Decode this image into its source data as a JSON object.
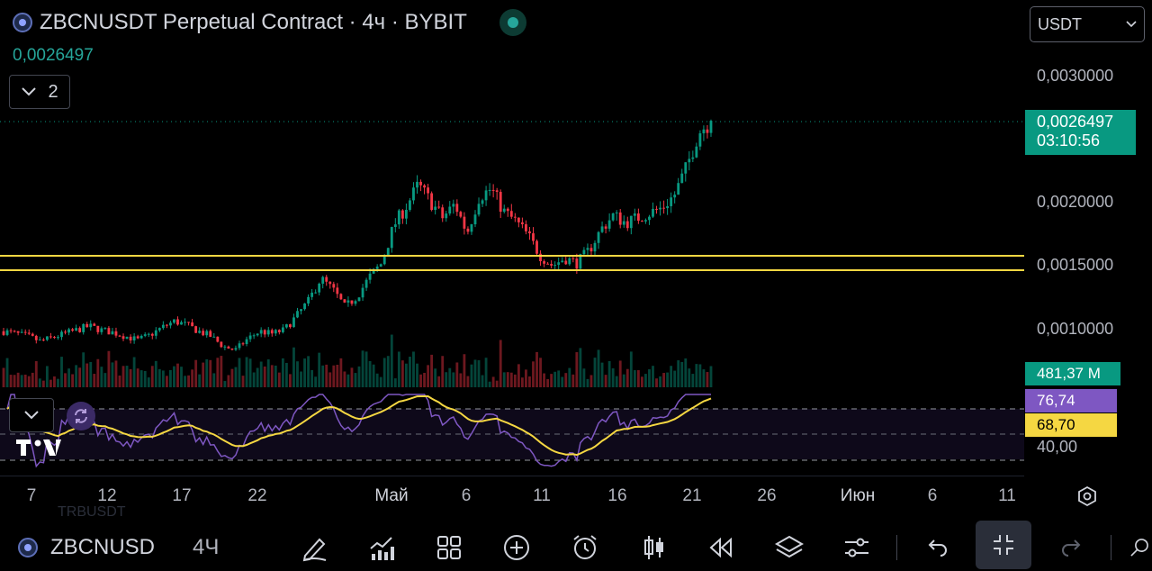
{
  "header": {
    "title": "ZBCNUSDT Perpetual Contract · 4ч · BYBIT",
    "last_price": "0,0026497",
    "collapse_count": "2",
    "currency": "USDT"
  },
  "price_tag": {
    "price": "0,0026497",
    "countdown": "03:10:56"
  },
  "indicator_tags": {
    "volume": "481,37 M",
    "rsi": "76,74",
    "rsi_ma": "68,70",
    "rsi_low": "40,00"
  },
  "colors": {
    "up": "#089981",
    "down": "#f23645",
    "rsi": "#7e57c2",
    "rsi_ma": "#f5d742",
    "level_lines": "#f5d742"
  },
  "chart_data": {
    "type": "candlestick",
    "y_ticks": [
      "0,0030000",
      "0,0020000",
      "0,0015000",
      "0,0010000"
    ],
    "y_tick_values": [
      0.003,
      0.002,
      0.0015,
      0.001
    ],
    "x_ticks": [
      "7",
      "12",
      "17",
      "22",
      "Май",
      "6",
      "11",
      "16",
      "21",
      "26",
      "Июн",
      "6",
      "11"
    ],
    "horizontal_levels": [
      0.00157,
      0.00146
    ],
    "current_price": 0.0026497,
    "price_close_series": [
      0.00098,
      0.00096,
      0.00094,
      0.0009,
      0.00093,
      0.00096,
      0.00099,
      0.00102,
      0.00099,
      0.00097,
      0.00094,
      0.00091,
      0.00095,
      0.00101,
      0.00106,
      0.00103,
      0.00098,
      0.00094,
      0.00086,
      0.00083,
      0.00092,
      0.00098,
      0.00096,
      0.00099,
      0.0011,
      0.00122,
      0.0014,
      0.00131,
      0.00117,
      0.00126,
      0.00141,
      0.00152,
      0.00182,
      0.00197,
      0.00214,
      0.00201,
      0.00188,
      0.00199,
      0.00176,
      0.00205,
      0.00211,
      0.00193,
      0.00185,
      0.00174,
      0.00158,
      0.0015,
      0.00156,
      0.00152,
      0.00162,
      0.00179,
      0.0019,
      0.00184,
      0.00188,
      0.00192,
      0.00196,
      0.00206,
      0.00228,
      0.00256,
      0.00265
    ],
    "rsi_low_level": 40
  },
  "toolbar": {
    "symbol": "ZBCNUSD",
    "timeframe": "4Ч",
    "ghost_text": "TRBUSDT",
    "tools": [
      "pen-icon",
      "chart-icon",
      "grid-icon",
      "plus-icon",
      "alarm-icon",
      "candles-icon",
      "rewind-icon",
      "layers-icon",
      "sliders-icon",
      "undo-icon",
      "fullscreen-exit-icon",
      "redo-icon"
    ]
  }
}
